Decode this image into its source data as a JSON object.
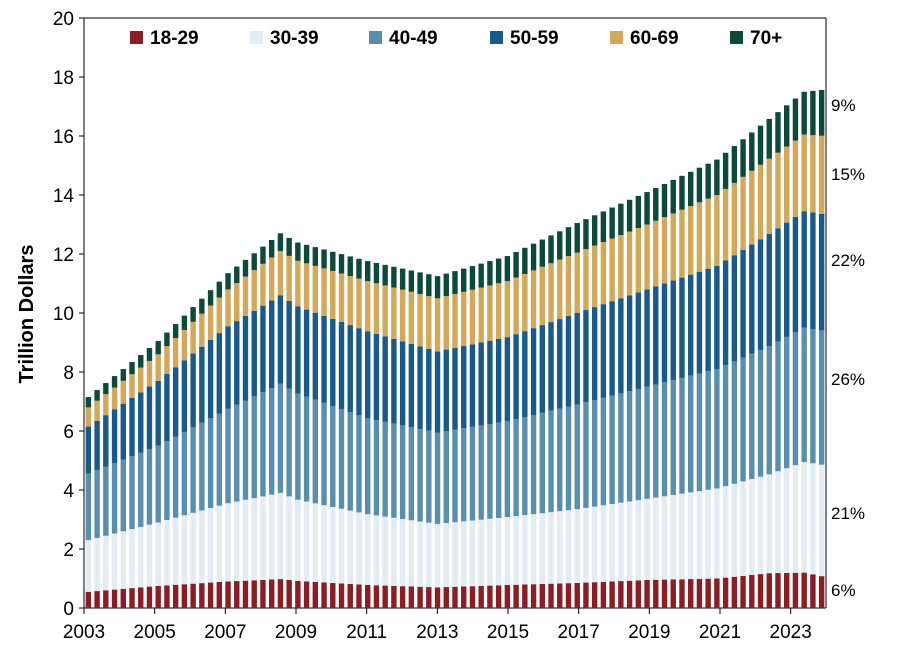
{
  "chart_data": {
    "type": "bar",
    "stacked": true,
    "title": "",
    "ylabel": "Trillion Dollars",
    "xlabel": "",
    "ylim": [
      0,
      20
    ],
    "yticks": [
      "0",
      "2",
      "4",
      "6",
      "8",
      "10",
      "12",
      "14",
      "16",
      "18",
      "20"
    ],
    "xticks": [
      "2003",
      "2005",
      "2007",
      "2009",
      "2011",
      "2013",
      "2015",
      "2017",
      "2019",
      "2021",
      "2023"
    ],
    "x_range": [
      "2003 Q1",
      "2024 Q1"
    ],
    "grid": false,
    "legend_position": "top",
    "shares": [
      "9%",
      "15%",
      "22%",
      "26%",
      "21%",
      "6%"
    ],
    "series": [
      {
        "name": "18-29",
        "color": "#8B1E24",
        "anchors": [
          [
            2003.0,
            0.55
          ],
          [
            2005.0,
            0.75
          ],
          [
            2007.0,
            0.9
          ],
          [
            2008.5,
            0.98
          ],
          [
            2009.0,
            0.92
          ],
          [
            2011.0,
            0.78
          ],
          [
            2013.0,
            0.7
          ],
          [
            2015.0,
            0.78
          ],
          [
            2017.0,
            0.85
          ],
          [
            2019.0,
            0.95
          ],
          [
            2021.0,
            1.0
          ],
          [
            2022.5,
            1.18
          ],
          [
            2023.5,
            1.2
          ],
          [
            2024.0,
            1.08
          ]
        ]
      },
      {
        "name": "30-39",
        "color": "#E3ECF2",
        "anchors": [
          [
            2003.0,
            1.75
          ],
          [
            2005.0,
            2.15
          ],
          [
            2007.0,
            2.65
          ],
          [
            2008.5,
            2.92
          ],
          [
            2009.0,
            2.75
          ],
          [
            2011.0,
            2.4
          ],
          [
            2013.0,
            2.15
          ],
          [
            2015.0,
            2.3
          ],
          [
            2017.0,
            2.5
          ],
          [
            2019.0,
            2.75
          ],
          [
            2021.0,
            3.05
          ],
          [
            2022.5,
            3.35
          ],
          [
            2023.5,
            3.75
          ],
          [
            2024.0,
            3.78
          ]
        ]
      },
      {
        "name": "40-49",
        "color": "#5A8EAD",
        "anchors": [
          [
            2003.0,
            2.25
          ],
          [
            2005.0,
            2.6
          ],
          [
            2007.0,
            3.2
          ],
          [
            2008.5,
            3.7
          ],
          [
            2009.0,
            3.6
          ],
          [
            2011.0,
            3.25
          ],
          [
            2013.0,
            3.1
          ],
          [
            2015.0,
            3.25
          ],
          [
            2017.0,
            3.55
          ],
          [
            2019.0,
            3.8
          ],
          [
            2021.0,
            4.05
          ],
          [
            2022.5,
            4.35
          ],
          [
            2023.5,
            4.55
          ],
          [
            2024.0,
            4.55
          ]
        ]
      },
      {
        "name": "50-59",
        "color": "#1A5A8A",
        "anchors": [
          [
            2003.0,
            1.6
          ],
          [
            2005.0,
            2.2
          ],
          [
            2007.0,
            2.8
          ],
          [
            2008.5,
            3.0
          ],
          [
            2009.0,
            2.95
          ],
          [
            2011.0,
            2.95
          ],
          [
            2013.0,
            2.75
          ],
          [
            2015.0,
            2.85
          ],
          [
            2017.0,
            3.1
          ],
          [
            2019.0,
            3.3
          ],
          [
            2021.0,
            3.5
          ],
          [
            2022.5,
            3.8
          ],
          [
            2023.5,
            3.95
          ],
          [
            2024.0,
            3.95
          ]
        ]
      },
      {
        "name": "60-69",
        "color": "#D4A85A",
        "anchors": [
          [
            2003.0,
            0.65
          ],
          [
            2005.0,
            0.9
          ],
          [
            2007.0,
            1.25
          ],
          [
            2008.5,
            1.5
          ],
          [
            2009.0,
            1.55
          ],
          [
            2011.0,
            1.7
          ],
          [
            2013.0,
            1.8
          ],
          [
            2015.0,
            1.9
          ],
          [
            2017.0,
            2.05
          ],
          [
            2019.0,
            2.2
          ],
          [
            2021.0,
            2.4
          ],
          [
            2022.5,
            2.55
          ],
          [
            2023.5,
            2.6
          ],
          [
            2024.0,
            2.65
          ]
        ]
      },
      {
        "name": "70+",
        "color": "#0E4A3A",
        "anchors": [
          [
            2003.0,
            0.35
          ],
          [
            2005.0,
            0.45
          ],
          [
            2007.0,
            0.55
          ],
          [
            2008.5,
            0.6
          ],
          [
            2009.0,
            0.62
          ],
          [
            2011.0,
            0.68
          ],
          [
            2013.0,
            0.75
          ],
          [
            2015.0,
            0.85
          ],
          [
            2017.0,
            1.0
          ],
          [
            2019.0,
            1.1
          ],
          [
            2021.0,
            1.2
          ],
          [
            2022.5,
            1.35
          ],
          [
            2023.5,
            1.45
          ],
          [
            2024.0,
            1.55
          ]
        ]
      }
    ]
  }
}
